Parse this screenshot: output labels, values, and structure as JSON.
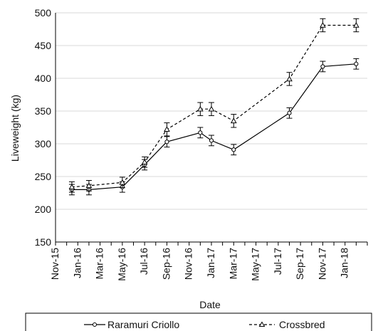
{
  "chart_data": {
    "type": "line",
    "xlabel": "Date",
    "ylabel": "Liveweight (kg)",
    "ylim": [
      150,
      500
    ],
    "yticks": [
      150,
      200,
      250,
      300,
      350,
      400,
      450,
      500
    ],
    "xtick_labels": [
      "Nov-15",
      "Jan-16",
      "Mar-16",
      "May-16",
      "Jul-16",
      "Sep-16",
      "Nov-16",
      "Jan-17",
      "Mar-17",
      "May-17",
      "Jul-17",
      "Sep-17",
      "Nov-17",
      "Jan-18"
    ],
    "grid": "horizontal",
    "legend_position": "bottom",
    "series": [
      {
        "name": "Raramuri Criollo",
        "line_style": "solid",
        "marker": "circle",
        "color": "#000000",
        "points": [
          {
            "date": "2015-12-15",
            "y": 230,
            "err": 8
          },
          {
            "date": "2016-02-01",
            "y": 230,
            "err": 8
          },
          {
            "date": "2016-05-01",
            "y": 234,
            "err": 8
          },
          {
            "date": "2016-07-01",
            "y": 268,
            "err": 8
          },
          {
            "date": "2016-09-01",
            "y": 303,
            "err": 8
          },
          {
            "date": "2016-12-01",
            "y": 317,
            "err": 8
          },
          {
            "date": "2017-01-01",
            "y": 305,
            "err": 8
          },
          {
            "date": "2017-03-01",
            "y": 291,
            "err": 8
          },
          {
            "date": "2017-08-01",
            "y": 347,
            "err": 8
          },
          {
            "date": "2017-11-01",
            "y": 418,
            "err": 8
          },
          {
            "date": "2018-02-01",
            "y": 422,
            "err": 8
          }
        ]
      },
      {
        "name": "Crossbred",
        "line_style": "dashed",
        "marker": "triangle",
        "color": "#000000",
        "points": [
          {
            "date": "2015-12-15",
            "y": 234,
            "err": 8
          },
          {
            "date": "2016-02-01",
            "y": 236,
            "err": 8
          },
          {
            "date": "2016-05-01",
            "y": 241,
            "err": 8
          },
          {
            "date": "2016-07-01",
            "y": 272,
            "err": 8
          },
          {
            "date": "2016-09-01",
            "y": 322,
            "err": 10
          },
          {
            "date": "2016-12-01",
            "y": 353,
            "err": 10
          },
          {
            "date": "2017-01-01",
            "y": 353,
            "err": 10
          },
          {
            "date": "2017-03-01",
            "y": 335,
            "err": 10
          },
          {
            "date": "2017-08-01",
            "y": 399,
            "err": 10
          },
          {
            "date": "2017-11-01",
            "y": 481,
            "err": 10
          },
          {
            "date": "2018-02-01",
            "y": 481,
            "err": 10
          }
        ]
      }
    ]
  }
}
